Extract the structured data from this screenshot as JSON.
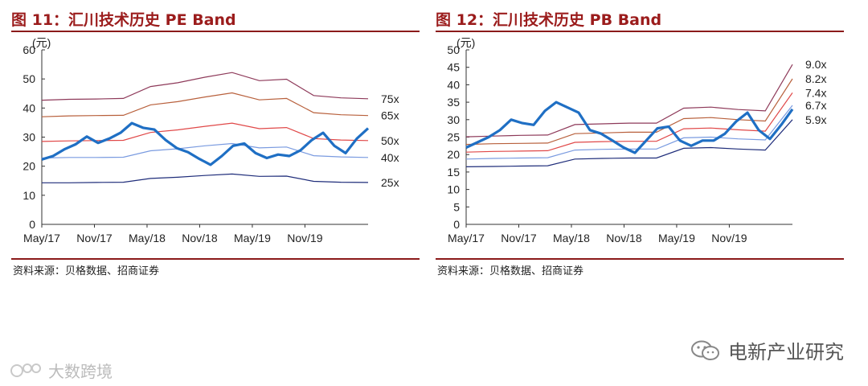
{
  "figures": [
    {
      "title": "图 11：汇川技术历史 PE Band",
      "source": "资料来源：贝格数据、招商证券",
      "chart_data": {
        "type": "line",
        "unit_label": "(元)",
        "ylim": [
          0,
          60
        ],
        "yticks": [
          0,
          10,
          20,
          30,
          40,
          50,
          60
        ],
        "x_tick_labels": [
          "May/17",
          "Nov/17",
          "May/18",
          "Nov/18",
          "May/19",
          "Nov/19"
        ],
        "band_colors": [
          "#1f2d7a",
          "#7a9be0",
          "#e04848",
          "#b8603c",
          "#8e3a5a"
        ],
        "band_labels": [
          "25x",
          "40x",
          "50x",
          "65x",
          "75x"
        ],
        "bands": [
          [
            14.3,
            14.3,
            14.4,
            14.5,
            15.8,
            16.2,
            16.8,
            17.3,
            16.5,
            16.6,
            14.8,
            14.5,
            14.4
          ],
          [
            22.8,
            23.0,
            23.0,
            23.1,
            25.3,
            26.0,
            27.0,
            27.8,
            26.3,
            26.6,
            23.6,
            23.2,
            23.0
          ],
          [
            28.5,
            28.7,
            28.8,
            28.9,
            31.6,
            32.5,
            33.7,
            34.8,
            32.9,
            33.3,
            29.5,
            29.0,
            28.8
          ],
          [
            37.0,
            37.3,
            37.4,
            37.5,
            41.1,
            42.2,
            43.8,
            45.2,
            42.8,
            43.3,
            38.4,
            37.7,
            37.4
          ],
          [
            42.7,
            43.0,
            43.1,
            43.3,
            47.4,
            48.7,
            50.6,
            52.2,
            49.4,
            49.9,
            44.3,
            43.5,
            43.2
          ]
        ],
        "price": [
          22.3,
          23.5,
          25.8,
          27.5,
          30.2,
          28.0,
          29.5,
          31.5,
          34.8,
          33.2,
          32.6,
          29.0,
          26.2,
          24.8,
          22.5,
          20.5,
          23.5,
          27.0,
          27.8,
          24.5,
          22.8,
          24.0,
          23.5,
          25.5,
          29.0,
          31.5,
          27.0,
          24.5,
          29.5,
          33.0
        ],
        "series_color": "#1f6fc4"
      }
    },
    {
      "title": "图 12：汇川技术历史 PB Band",
      "source": "资料来源：贝格数据、招商证券",
      "chart_data": {
        "type": "line",
        "unit_label": "(元)",
        "ylim": [
          0,
          50
        ],
        "yticks": [
          0,
          5,
          10,
          15,
          20,
          25,
          30,
          35,
          40,
          45,
          50
        ],
        "x_tick_labels": [
          "May/17",
          "Nov/17",
          "May/18",
          "Nov/18",
          "May/19",
          "Nov/19"
        ],
        "band_colors": [
          "#1f2d7a",
          "#7a9be0",
          "#e04848",
          "#b8603c",
          "#8e3a5a"
        ],
        "band_labels": [
          "5.9x",
          "6.7x",
          "7.4x",
          "8.2x",
          "9.0x"
        ],
        "bands": [
          [
            16.5,
            16.6,
            16.7,
            16.8,
            18.7,
            18.9,
            19.0,
            19.0,
            21.8,
            22.0,
            21.6,
            21.3,
            30.0
          ],
          [
            18.7,
            18.9,
            19.0,
            19.1,
            21.3,
            21.5,
            21.6,
            21.6,
            24.8,
            25.0,
            24.5,
            24.2,
            34.1
          ],
          [
            20.7,
            20.9,
            21.0,
            21.1,
            23.5,
            23.7,
            23.8,
            23.8,
            27.4,
            27.6,
            27.1,
            26.7,
            37.7
          ],
          [
            22.9,
            23.1,
            23.2,
            23.3,
            26.0,
            26.2,
            26.4,
            26.4,
            30.3,
            30.6,
            30.0,
            29.6,
            41.7
          ],
          [
            25.1,
            25.3,
            25.5,
            25.6,
            28.6,
            28.8,
            29.0,
            29.0,
            33.3,
            33.6,
            32.9,
            32.5,
            45.8
          ]
        ],
        "price": [
          22.0,
          23.5,
          25.0,
          27.0,
          30.0,
          29.0,
          28.5,
          32.5,
          35.0,
          33.5,
          32.0,
          27.0,
          26.0,
          24.0,
          22.0,
          20.5,
          24.0,
          27.5,
          28.0,
          24.0,
          22.5,
          24.0,
          24.0,
          26.0,
          29.5,
          32.0,
          27.0,
          24.5,
          28.5,
          33.0
        ],
        "series_color": "#1f6fc4"
      }
    }
  ],
  "watermarks": {
    "right_text": "电新产业研究",
    "left_text": "大数跨境"
  }
}
